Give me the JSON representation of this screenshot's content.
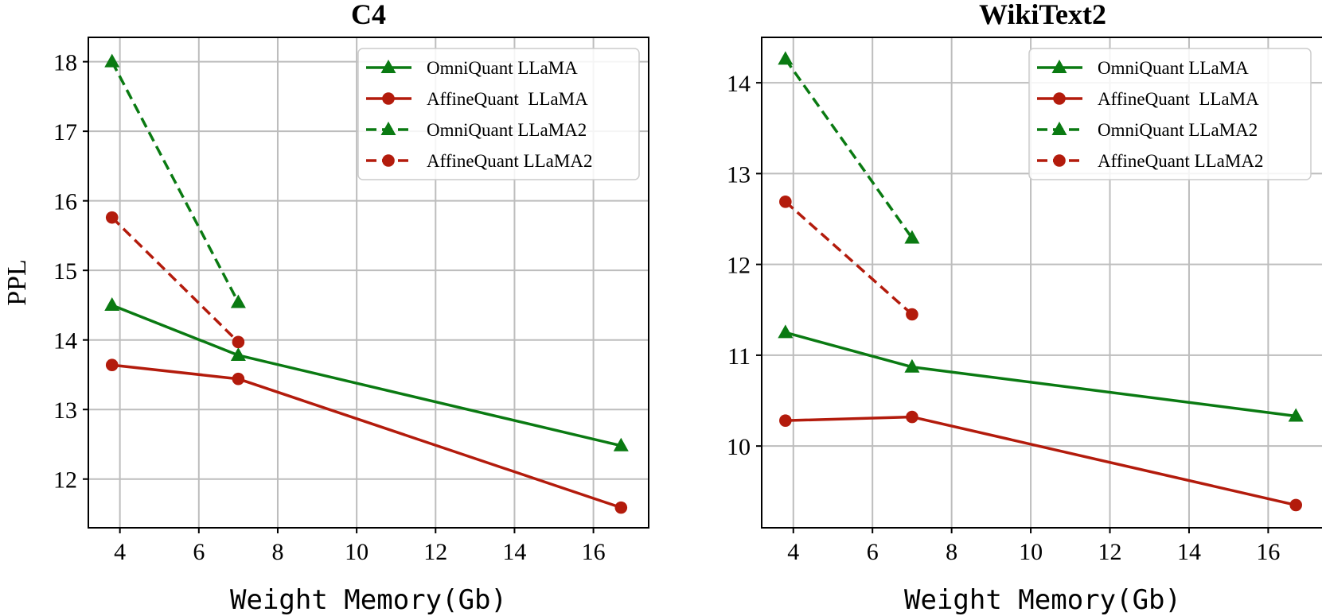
{
  "colors": {
    "omni": "#0a7a12",
    "affine": "#b31b0c",
    "grid": "#bdbdbd"
  },
  "chart_data": [
    {
      "type": "line",
      "title": "C4",
      "xlabel": "Weight Memory(Gb)",
      "ylabel": "PPL",
      "xlim": [
        3.2,
        17.4
      ],
      "ylim": [
        11.3,
        18.35
      ],
      "xticks": [
        4,
        6,
        8,
        10,
        12,
        14,
        16
      ],
      "yticks": [
        12,
        13,
        14,
        15,
        16,
        17,
        18
      ],
      "grid": true,
      "legend_position": "top-right",
      "series": [
        {
          "name": "OmniQuant LLaMA",
          "marker": "triangle",
          "dash": "solid",
          "color_key": "omni",
          "x": [
            3.8,
            7.0,
            16.7
          ],
          "y": [
            14.5,
            13.78,
            12.48
          ]
        },
        {
          "name": "AffineQuant  LLaMA",
          "marker": "circle",
          "dash": "solid",
          "color_key": "affine",
          "x": [
            3.8,
            7.0,
            16.7
          ],
          "y": [
            13.64,
            13.44,
            11.59
          ]
        },
        {
          "name": "OmniQuant LLaMA2",
          "marker": "triangle",
          "dash": "dashed",
          "color_key": "omni",
          "x": [
            3.8,
            7.0
          ],
          "y": [
            18.0,
            14.54
          ]
        },
        {
          "name": "AffineQuant LLaMA2",
          "marker": "circle",
          "dash": "dashed",
          "color_key": "affine",
          "x": [
            3.8,
            7.0
          ],
          "y": [
            15.76,
            13.97
          ]
        }
      ]
    },
    {
      "type": "line",
      "title": "WikiText2",
      "xlabel": "Weight Memory(Gb)",
      "ylabel": "",
      "xlim": [
        3.2,
        17.4
      ],
      "ylim": [
        9.1,
        14.5
      ],
      "xticks": [
        4,
        6,
        8,
        10,
        12,
        14,
        16
      ],
      "yticks": [
        10,
        11,
        12,
        13,
        14
      ],
      "grid": true,
      "legend_position": "top-right",
      "series": [
        {
          "name": "OmniQuant LLaMA",
          "marker": "triangle",
          "dash": "solid",
          "color_key": "omni",
          "x": [
            3.8,
            7.0,
            16.7
          ],
          "y": [
            11.25,
            10.87,
            10.33
          ]
        },
        {
          "name": "AffineQuant  LLaMA",
          "marker": "circle",
          "dash": "solid",
          "color_key": "affine",
          "x": [
            3.8,
            7.0,
            16.7
          ],
          "y": [
            10.28,
            10.32,
            9.35
          ]
        },
        {
          "name": "OmniQuant LLaMA2",
          "marker": "triangle",
          "dash": "dashed",
          "color_key": "omni",
          "x": [
            3.8,
            7.0
          ],
          "y": [
            14.26,
            12.29
          ]
        },
        {
          "name": "AffineQuant LLaMA2",
          "marker": "circle",
          "dash": "dashed",
          "color_key": "affine",
          "x": [
            3.8,
            7.0
          ],
          "y": [
            12.69,
            11.45
          ]
        }
      ]
    }
  ]
}
